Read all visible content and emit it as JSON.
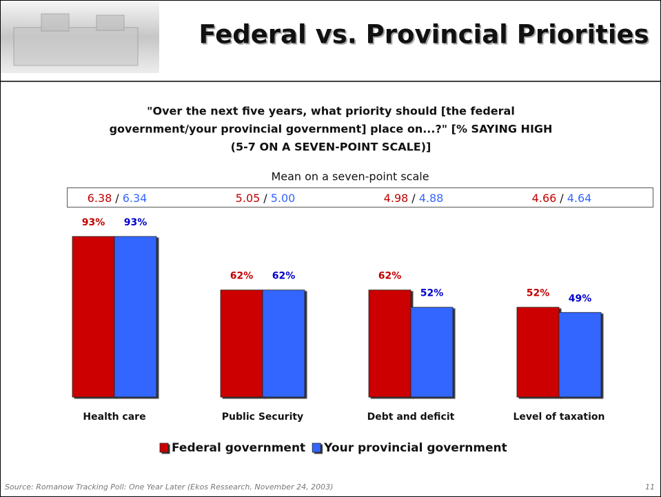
{
  "chart_data": {
    "type": "bar",
    "title": "Federal vs. Provincial Priorities",
    "subtitle": [
      "\"Over the next five years, what priority should [the federal",
      "government/your provincial government] place on...?\" [% SAYING HIGH",
      "(5-7 ON A SEVEN-POINT SCALE)]"
    ],
    "means_title": "Mean on a seven-point scale",
    "mean_separator": "/",
    "categories": [
      "Health care",
      "Public Security",
      "Debt and deficit",
      "Level of taxation"
    ],
    "series": [
      {
        "name": "Federal government",
        "color": "#cc0000",
        "text_color": "#c00000",
        "values": [
          93,
          62,
          62,
          52
        ],
        "value_labels": [
          "93%",
          "62%",
          "62%",
          "52%"
        ],
        "means": [
          6.38,
          5.05,
          4.98,
          4.66
        ]
      },
      {
        "name": "Your provincial government",
        "color": "#3366ff",
        "text_color": "#0000cc",
        "values": [
          93,
          62,
          52,
          49
        ],
        "value_labels": [
          "93%",
          "62%",
          "52%",
          "49%"
        ],
        "means": [
          6.34,
          {
            "value": 5,
            "label": "5.00"
          },
          4.88,
          4.64
        ]
      }
    ],
    "source": "Source: Romanow Tracking Poll:  One Year Later (Ekos Ressearch, November 24, 2003)",
    "page_number": 11
  }
}
